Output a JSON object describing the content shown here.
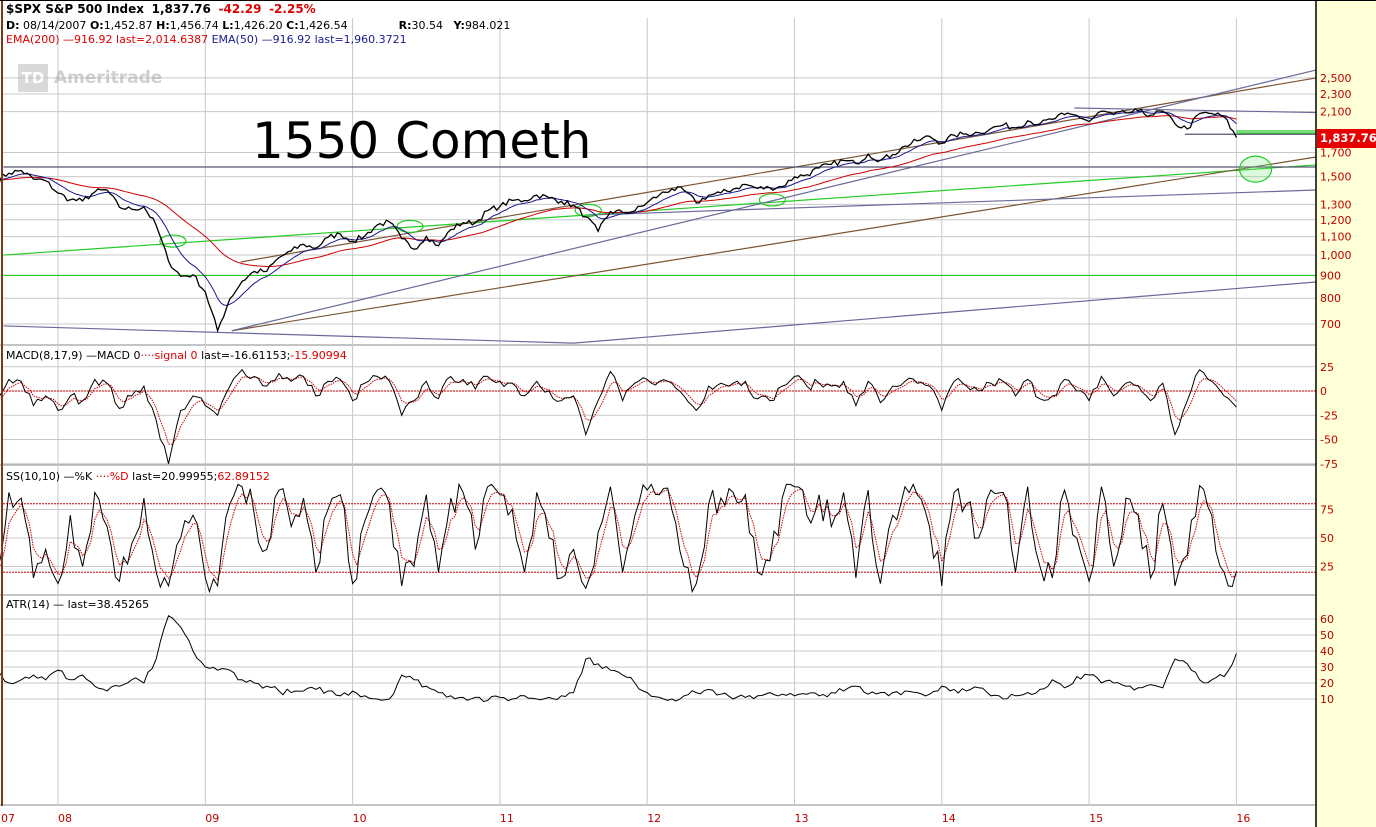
{
  "header": {
    "symbol": "$SPX S&P 500 Index",
    "last": "1,837.76",
    "change": "-42.29",
    "change_pct": "-2.25%",
    "d_label": "D:",
    "date": "08/14/2007",
    "o_label": "O:",
    "open": "1,452.87",
    "h_label": "H:",
    "high": "1,456.74",
    "l_label": "L:",
    "low": "1,426.20",
    "c_label": "C:",
    "close": "1,426.54",
    "r_label": "R:",
    "r_value": "30.54",
    "y_label": "Y:",
    "y_value": "984.021",
    "ema200": "EMA(200) —916.92 last=2,014.6387",
    "ema50": "EMA(50) —916.92 last=1,960.3721"
  },
  "logo": {
    "mark": "TD",
    "name": "Ameritrade"
  },
  "annotation": "1550 Cometh",
  "last_price_label": "1,837.7600",
  "colors": {
    "price": "#000000",
    "ema200": "#d00000",
    "ema50": "#1a1a90",
    "green_line": "#22cc22",
    "brown_line": "#7a5533",
    "blue_line": "#6a6a9a",
    "axis_text": "#c00000",
    "axis_bg": "#ffffd8",
    "last_box": "#e80000"
  },
  "chart_data": [
    {
      "type": "line",
      "title": "$SPX S&P 500 Index",
      "yscale": "log",
      "ylim": [
        640,
        2700
      ],
      "yticks": [
        "2,500",
        "2,300",
        "2,100",
        "1,700",
        "1,500",
        "1,300",
        "1,200",
        "1,100",
        "1,000",
        "900",
        "800",
        "700"
      ],
      "ytick_values": [
        2500,
        2300,
        2100,
        1700,
        1500,
        1300,
        1200,
        1100,
        1000,
        900,
        800,
        700
      ],
      "xticks": [
        "07",
        "08",
        "09",
        "10",
        "11",
        "12",
        "13",
        "14",
        "15",
        "16"
      ],
      "xtick_years": [
        2007,
        2008,
        2009,
        2010,
        2011,
        2012,
        2013,
        2014,
        2015,
        2016
      ],
      "grid": true,
      "start": "2007-08",
      "close": [
        1474,
        1527,
        1549,
        1481,
        1468,
        1378,
        1331,
        1323,
        1386,
        1400,
        1280,
        1267,
        1283,
        1166,
        969,
        896,
        903,
        826,
        676,
        798,
        873,
        919,
        919,
        987,
        1021,
        1057,
        1036,
        1096,
        1115,
        1074,
        1104,
        1169,
        1187,
        1089,
        1031,
        1102,
        1049,
        1141,
        1183,
        1181,
        1258,
        1286,
        1327,
        1326,
        1364,
        1345,
        1321,
        1292,
        1219,
        1131,
        1253,
        1247,
        1258,
        1312,
        1366,
        1408,
        1398,
        1310,
        1362,
        1379,
        1407,
        1441,
        1412,
        1416,
        1426,
        1498,
        1515,
        1569,
        1598,
        1631,
        1606,
        1686,
        1633,
        1682,
        1757,
        1806,
        1848,
        1783,
        1859,
        1872,
        1884,
        1924,
        1960,
        1931,
        2003,
        1972,
        2018,
        2068,
        2059,
        1995,
        2105,
        2068,
        2086,
        2107,
        2063,
        2104,
        1972,
        1920,
        2079,
        2080,
        2044,
        1837.76
      ],
      "series": [
        {
          "name": "EMA(200)",
          "last": 2014.6387
        },
        {
          "name": "EMA(50)",
          "last": 1960.3721
        }
      ],
      "trendlines": [
        {
          "color": "green",
          "points": [
            [
              2007.63,
              900
            ],
            [
              2016.54,
              900
            ]
          ]
        },
        {
          "color": "green",
          "points": [
            [
              2007.63,
              1000
            ],
            [
              2016.54,
              1594
            ]
          ]
        },
        {
          "color": "green",
          "points": [
            [
              2016.0,
              1880
            ],
            [
              2016.54,
              1880
            ]
          ]
        },
        {
          "color": "green",
          "points": [
            [
              2016.0,
              1900
            ],
            [
              2016.54,
              1900
            ]
          ]
        },
        {
          "color": "brown",
          "points": [
            [
              2009.24,
              965
            ],
            [
              2016.54,
              2500
            ]
          ]
        },
        {
          "color": "brown",
          "points": [
            [
              2009.18,
              676
            ],
            [
              2016.54,
              1661
            ]
          ]
        },
        {
          "color": "blue",
          "points": [
            [
              2009.18,
              676
            ],
            [
              2016.54,
              2604
            ]
          ]
        },
        {
          "color": "blue",
          "points": [
            [
              2007.63,
              693
            ],
            [
              2011.5,
              634
            ],
            [
              2016.54,
              870
            ]
          ]
        },
        {
          "color": "blue",
          "points": [
            [
              2011.6,
              1230
            ],
            [
              2016.54,
              1400
            ]
          ]
        },
        {
          "color": "blue",
          "points": [
            [
              2014.9,
              2140
            ],
            [
              2016.54,
              2090
            ]
          ]
        },
        {
          "color": "dark",
          "points": [
            [
              2007.63,
              1577
            ],
            [
              2016.54,
              1577
            ]
          ]
        },
        {
          "color": "dark",
          "points": [
            [
              2015.65,
              1868
            ],
            [
              2016.54,
              1868
            ]
          ]
        }
      ],
      "highlights": [
        {
          "date": 2008.78,
          "price": 1075,
          "size": "small"
        },
        {
          "date": 2010.39,
          "price": 1160,
          "size": "small"
        },
        {
          "date": 2011.6,
          "price": 1260,
          "size": "small"
        },
        {
          "date": 2012.85,
          "price": 1330,
          "size": "small"
        },
        {
          "date": 2016.13,
          "price": 1560,
          "size": "large"
        }
      ]
    },
    {
      "type": "line",
      "title": "MACD(8,17,9) —MACD 0",
      "signal_label": "signal 0",
      "last_text": "last=-16.61153;",
      "signal_last": "-15.90994",
      "ylim": [
        -80,
        30
      ],
      "yticks": [
        "25",
        "0",
        "-25",
        "-50",
        "-75"
      ],
      "ytick_values": [
        25,
        0,
        -25,
        -50,
        -75
      ],
      "values": [
        -10,
        12,
        10,
        -15,
        -5,
        -20,
        -5,
        -10,
        12,
        8,
        -18,
        -5,
        5,
        -30,
        -75,
        -20,
        -5,
        -15,
        -25,
        5,
        22,
        15,
        5,
        18,
        10,
        15,
        -5,
        10,
        12,
        -10,
        8,
        15,
        10,
        -25,
        -10,
        10,
        -8,
        15,
        12,
        2,
        15,
        10,
        8,
        -5,
        10,
        0,
        -10,
        -5,
        -45,
        -10,
        20,
        -10,
        8,
        12,
        10,
        8,
        -5,
        -20,
        5,
        8,
        8,
        10,
        -8,
        -10,
        5,
        15,
        5,
        8,
        5,
        10,
        -15,
        10,
        -12,
        5,
        10,
        8,
        5,
        -20,
        10,
        5,
        0,
        8,
        10,
        -5,
        12,
        -8,
        -5,
        12,
        0,
        -10,
        15,
        -5,
        8,
        5,
        -10,
        8,
        -45,
        -10,
        22,
        10,
        -5,
        -16.61
      ]
    },
    {
      "type": "line",
      "title": "SS(10,10) —%K",
      "d_label": "%D",
      "last_text": "last=20.99955;",
      "d_last": "62.89152",
      "ylim": [
        0,
        100
      ],
      "yticks": [
        "75",
        "50",
        "25"
      ],
      "ytick_values": [
        75,
        50,
        25
      ],
      "reference_lines": [
        80,
        20
      ],
      "values": [
        20,
        90,
        85,
        15,
        40,
        10,
        70,
        25,
        90,
        60,
        12,
        45,
        85,
        20,
        8,
        50,
        70,
        15,
        8,
        80,
        95,
        70,
        40,
        92,
        60,
        85,
        20,
        75,
        88,
        10,
        65,
        92,
        80,
        8,
        25,
        88,
        20,
        85,
        90,
        40,
        95,
        88,
        75,
        20,
        90,
        50,
        15,
        40,
        6,
        55,
        95,
        20,
        70,
        92,
        88,
        75,
        25,
        10,
        80,
        85,
        90,
        88,
        20,
        30,
        85,
        95,
        70,
        88,
        60,
        90,
        15,
        92,
        10,
        70,
        95,
        88,
        60,
        8,
        90,
        80,
        50,
        92,
        90,
        20,
        95,
        25,
        15,
        92,
        50,
        12,
        95,
        25,
        85,
        70,
        15,
        80,
        8,
        35,
        96,
        70,
        20,
        21
      ]
    },
    {
      "type": "line",
      "title": "ATR(14) —",
      "last_text": "last=38.45265",
      "ylim": [
        0,
        70
      ],
      "yticks": [
        "60",
        "50",
        "40",
        "30",
        "20",
        "10"
      ],
      "ytick_values": [
        60,
        50,
        40,
        30,
        20,
        10
      ],
      "values": [
        28,
        20,
        22,
        25,
        22,
        28,
        22,
        25,
        18,
        15,
        18,
        22,
        20,
        35,
        62,
        55,
        40,
        30,
        28,
        28,
        22,
        20,
        18,
        15,
        14,
        15,
        16,
        15,
        12,
        15,
        12,
        10,
        10,
        25,
        22,
        18,
        14,
        12,
        11,
        11,
        9,
        11,
        10,
        12,
        10,
        11,
        12,
        14,
        35,
        32,
        28,
        25,
        20,
        14,
        11,
        10,
        12,
        14,
        16,
        13,
        10,
        11,
        12,
        14,
        13,
        12,
        13,
        12,
        14,
        15,
        18,
        13,
        14,
        14,
        15,
        14,
        13,
        18,
        16,
        15,
        17,
        12,
        10,
        12,
        14,
        16,
        22,
        17,
        24,
        25,
        20,
        20,
        18,
        17,
        19,
        17,
        35,
        32,
        22,
        22,
        24,
        38.45
      ]
    }
  ]
}
